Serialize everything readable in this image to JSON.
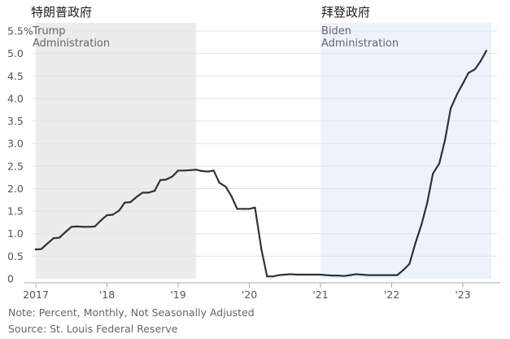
{
  "labels": {
    "trump_cn": "特朗普政府",
    "biden_cn": "拜登政府",
    "trump_en_1": "Trump",
    "trump_en_2": "Administration",
    "biden_en_1": "Biden",
    "biden_en_2": "Administration"
  },
  "footnote": {
    "note": "Note: Percent, Monthly, Not Seasonally Adjusted",
    "source": "Source: St. Louis Federal Reserve"
  },
  "colors": {
    "line": "#2f3336",
    "trump_band": "#ececec",
    "biden_band": "#eef3fb",
    "grid": "#e3e3e3",
    "axis_text": "#555555"
  },
  "chart_data": {
    "type": "line",
    "ylim": [
      0,
      5.5
    ],
    "xlim": [
      2017.0,
      2023.48
    ],
    "yticks": [
      {
        "v": 0,
        "label": "0"
      },
      {
        "v": 0.5,
        "label": "0.5"
      },
      {
        "v": 1.0,
        "label": "1.0"
      },
      {
        "v": 1.5,
        "label": "1.5"
      },
      {
        "v": 2.0,
        "label": "2.0"
      },
      {
        "v": 2.5,
        "label": "2.5"
      },
      {
        "v": 3.0,
        "label": "3.0"
      },
      {
        "v": 3.5,
        "label": "3.5"
      },
      {
        "v": 4.0,
        "label": "4.0"
      },
      {
        "v": 4.5,
        "label": "4.5"
      },
      {
        "v": 5.0,
        "label": "5.0"
      },
      {
        "v": 5.5,
        "label": "5.5%"
      }
    ],
    "xticks": [
      {
        "v": 2017,
        "label": "2017"
      },
      {
        "v": 2018,
        "label": "'18"
      },
      {
        "v": 2019,
        "label": "'19"
      },
      {
        "v": 2020,
        "label": "'20"
      },
      {
        "v": 2021,
        "label": "'21"
      },
      {
        "v": 2022,
        "label": "'22"
      },
      {
        "v": 2023,
        "label": "'23"
      }
    ],
    "shaded_periods": [
      {
        "label": "Trump Administration",
        "start": 2017.0,
        "end": 2019.25
      },
      {
        "label": "Biden Administration",
        "start": 2021.0,
        "end": 2023.4
      }
    ],
    "grid": true,
    "series": [
      {
        "points": [
          [
            2017.0,
            0.65
          ],
          [
            2017.08,
            0.66
          ],
          [
            2017.17,
            0.79
          ],
          [
            2017.25,
            0.9
          ],
          [
            2017.33,
            0.91
          ],
          [
            2017.42,
            1.04
          ],
          [
            2017.5,
            1.15
          ],
          [
            2017.58,
            1.16
          ],
          [
            2017.67,
            1.15
          ],
          [
            2017.75,
            1.15
          ],
          [
            2017.83,
            1.16
          ],
          [
            2017.92,
            1.3
          ],
          [
            2018.0,
            1.41
          ],
          [
            2018.08,
            1.42
          ],
          [
            2018.17,
            1.51
          ],
          [
            2018.25,
            1.69
          ],
          [
            2018.33,
            1.7
          ],
          [
            2018.42,
            1.82
          ],
          [
            2018.5,
            1.91
          ],
          [
            2018.58,
            1.91
          ],
          [
            2018.67,
            1.95
          ],
          [
            2018.75,
            2.19
          ],
          [
            2018.83,
            2.2
          ],
          [
            2018.92,
            2.27
          ],
          [
            2019.0,
            2.4
          ],
          [
            2019.08,
            2.4
          ],
          [
            2019.17,
            2.41
          ],
          [
            2019.25,
            2.42
          ],
          [
            2019.33,
            2.39
          ],
          [
            2019.42,
            2.38
          ],
          [
            2019.5,
            2.4
          ],
          [
            2019.58,
            2.13
          ],
          [
            2019.67,
            2.04
          ],
          [
            2019.75,
            1.83
          ],
          [
            2019.83,
            1.55
          ],
          [
            2019.92,
            1.55
          ],
          [
            2020.0,
            1.55
          ],
          [
            2020.08,
            1.58
          ],
          [
            2020.17,
            0.65
          ],
          [
            2020.25,
            0.05
          ],
          [
            2020.33,
            0.05
          ],
          [
            2020.42,
            0.08
          ],
          [
            2020.5,
            0.09
          ],
          [
            2020.58,
            0.1
          ],
          [
            2020.67,
            0.09
          ],
          [
            2020.75,
            0.09
          ],
          [
            2020.83,
            0.09
          ],
          [
            2020.92,
            0.09
          ],
          [
            2021.0,
            0.09
          ],
          [
            2021.08,
            0.08
          ],
          [
            2021.17,
            0.07
          ],
          [
            2021.25,
            0.07
          ],
          [
            2021.33,
            0.06
          ],
          [
            2021.42,
            0.08
          ],
          [
            2021.5,
            0.1
          ],
          [
            2021.58,
            0.09
          ],
          [
            2021.67,
            0.08
          ],
          [
            2021.75,
            0.08
          ],
          [
            2021.83,
            0.08
          ],
          [
            2021.92,
            0.08
          ],
          [
            2022.0,
            0.08
          ],
          [
            2022.08,
            0.08
          ],
          [
            2022.17,
            0.2
          ],
          [
            2022.25,
            0.33
          ],
          [
            2022.33,
            0.77
          ],
          [
            2022.42,
            1.21
          ],
          [
            2022.5,
            1.68
          ],
          [
            2022.58,
            2.33
          ],
          [
            2022.67,
            2.56
          ],
          [
            2022.75,
            3.08
          ],
          [
            2022.83,
            3.78
          ],
          [
            2022.92,
            4.1
          ],
          [
            2023.0,
            4.33
          ],
          [
            2023.08,
            4.57
          ],
          [
            2023.17,
            4.65
          ],
          [
            2023.25,
            4.83
          ],
          [
            2023.33,
            5.06
          ]
        ]
      }
    ]
  }
}
